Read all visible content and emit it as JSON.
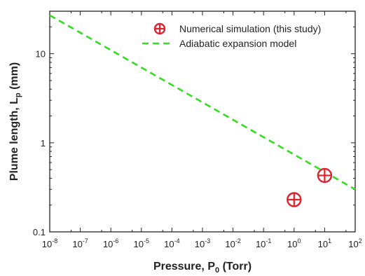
{
  "chart_data": {
    "type": "scatter",
    "title": "",
    "xlabel": {
      "main": "Pressure, P",
      "sub": "0",
      "unit": " (Torr)"
    },
    "ylabel": {
      "main": "Plume length, L",
      "sub": "p",
      "unit": " (mm)"
    },
    "x_scale": "log",
    "y_scale": "log",
    "xlim": [
      1e-08,
      100
    ],
    "ylim": [
      0.1,
      30
    ],
    "grid": false,
    "legend_position": "top-right",
    "x_ticks": [
      {
        "value": 1e-08,
        "base": "10",
        "exp": "-8"
      },
      {
        "value": 1e-07,
        "base": "10",
        "exp": "-7"
      },
      {
        "value": 1e-06,
        "base": "10",
        "exp": "-6"
      },
      {
        "value": 1e-05,
        "base": "10",
        "exp": "-5"
      },
      {
        "value": 0.0001,
        "base": "10",
        "exp": "-4"
      },
      {
        "value": 0.001,
        "base": "10",
        "exp": "-3"
      },
      {
        "value": 0.01,
        "base": "10",
        "exp": "-2"
      },
      {
        "value": 0.1,
        "base": "10",
        "exp": "-1"
      },
      {
        "value": 1,
        "base": "10",
        "exp": "0"
      },
      {
        "value": 10,
        "base": "10",
        "exp": "1"
      },
      {
        "value": 100,
        "base": "10",
        "exp": "2"
      }
    ],
    "y_ticks": [
      {
        "value": 0.1,
        "label": "0.1"
      },
      {
        "value": 1,
        "label": "1"
      },
      {
        "value": 10,
        "label": "10"
      }
    ],
    "series": [
      {
        "name": "Numerical simulation (this study)",
        "kind": "scatter",
        "color": "#e0202a",
        "marker": "circle-plus",
        "x": [
          1,
          10
        ],
        "y": [
          0.23,
          0.43
        ]
      },
      {
        "name": "Adiabatic expansion model",
        "kind": "line",
        "color": "#33dd22",
        "style": "dashed",
        "x": [
          1e-08,
          100
        ],
        "y": [
          27,
          0.3
        ]
      }
    ]
  }
}
